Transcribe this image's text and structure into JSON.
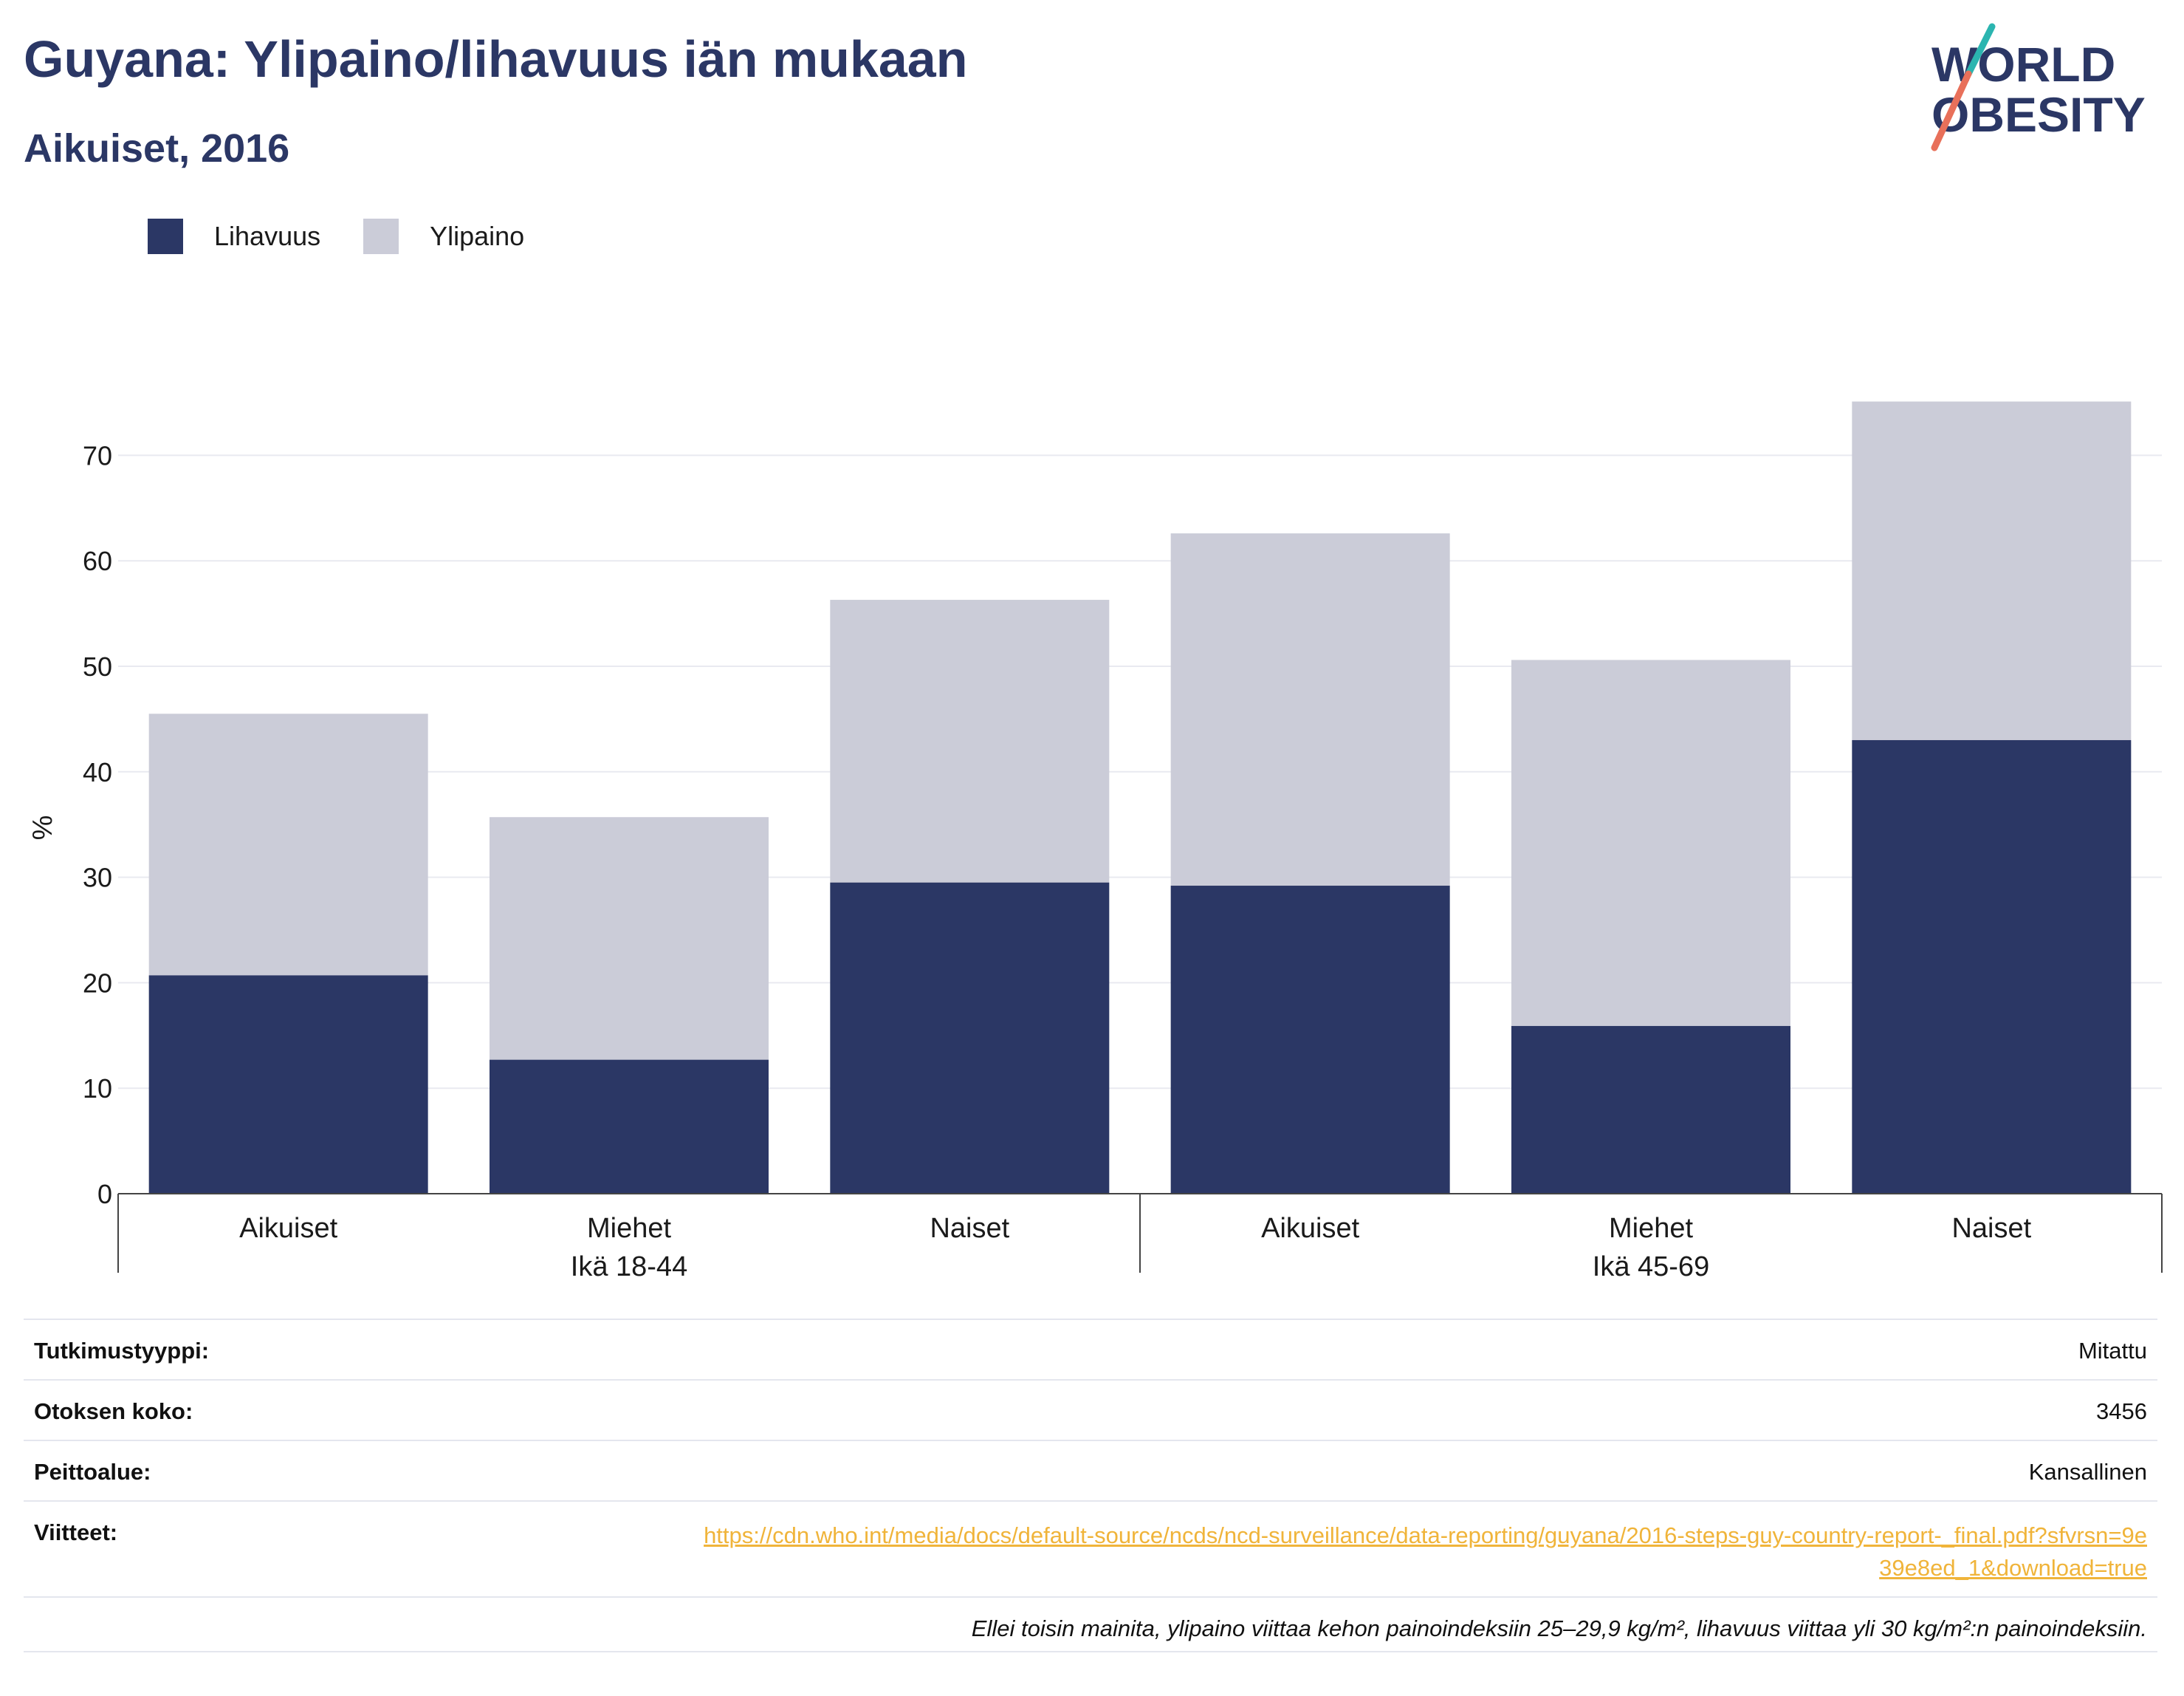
{
  "header": {
    "title": "Guyana: Ylipaino/lihavuus iän mukaan",
    "subtitle": "Aikuiset, 2016"
  },
  "logo": {
    "line1": "WORLD",
    "line2": "OBESITY"
  },
  "colors": {
    "lihavuus": "#2b3765",
    "ylipaino": "#cbccd8",
    "title": "#2b3765",
    "link": "#f0b43a",
    "logo_teal": "#2bb5b0",
    "logo_coral": "#e8705a"
  },
  "legend": [
    {
      "label": "Lihavuus",
      "color": "#2b3765"
    },
    {
      "label": "Ylipaino",
      "color": "#cbccd8"
    }
  ],
  "chart_data": {
    "type": "bar",
    "stacked": true,
    "ylabel": "%",
    "ylim": [
      0,
      75
    ],
    "yticks": [
      0,
      10,
      20,
      30,
      40,
      50,
      60,
      70
    ],
    "grid": true,
    "legend_position": "top-left",
    "categories": [
      "Aikuiset",
      "Miehet",
      "Naiset",
      "Aikuiset",
      "Miehet",
      "Naiset"
    ],
    "groups": [
      {
        "label": "Ikä 18-44",
        "categories": [
          "Aikuiset",
          "Miehet",
          "Naiset"
        ]
      },
      {
        "label": "Ikä 45-69",
        "categories": [
          "Aikuiset",
          "Miehet",
          "Naiset"
        ]
      }
    ],
    "series": [
      {
        "name": "Lihavuus",
        "values": [
          20.7,
          12.7,
          29.5,
          29.2,
          15.9,
          43.0
        ]
      },
      {
        "name": "Ylipaino",
        "values": [
          24.8,
          23.0,
          26.8,
          33.4,
          34.7,
          32.1
        ]
      }
    ]
  },
  "info": {
    "rows": [
      {
        "label": "Tutkimustyyppi:",
        "value": "Mitattu"
      },
      {
        "label": "Otoksen koko:",
        "value": "3456"
      },
      {
        "label": "Peittoalue:",
        "value": "Kansallinen"
      }
    ],
    "ref_label": "Viitteet:",
    "ref_url": "https://cdn.who.int/media/docs/default-source/ncds/ncd-surveillance/data-reporting/guyana/2016-steps-guy-country-report-_final.pdf?sfvrsn=9e39e8ed_1&download=true",
    "footnote": "Ellei toisin mainita, ylipaino viittaa kehon painoindeksiin 25–29,9 kg/m², lihavuus viittaa yli 30 kg/m²:n painoindeksiin."
  }
}
